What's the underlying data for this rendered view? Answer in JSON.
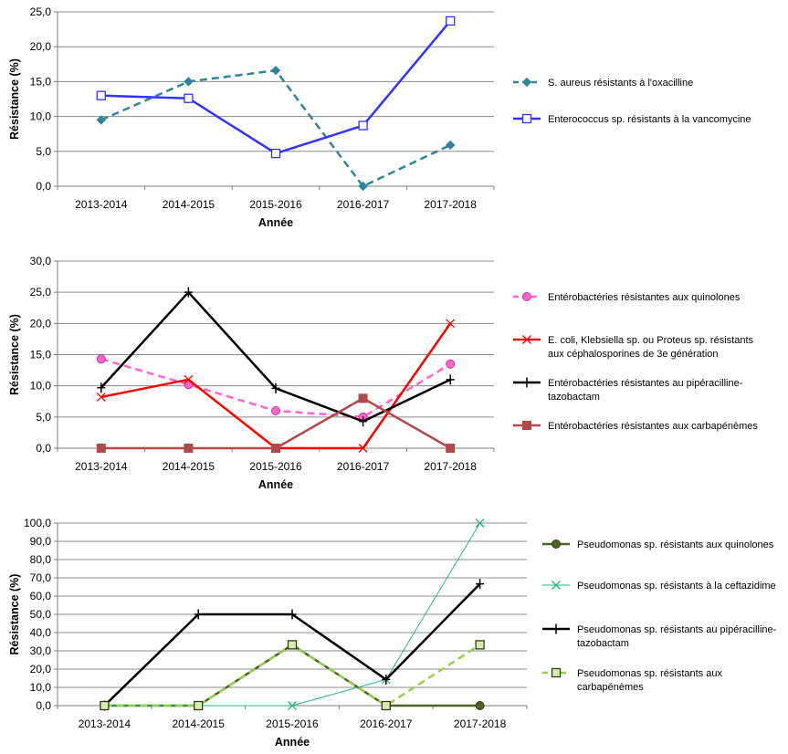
{
  "chart_data": [
    {
      "type": "line",
      "categories": [
        "2013-2014",
        "2014-2015",
        "2015-2016",
        "2016-2017",
        "2017-2018"
      ],
      "xlabel": "Année",
      "ylabel": "Résistance (%)",
      "ylim": [
        0,
        25
      ],
      "ystep": 5,
      "yticks": [
        "0,0",
        "5,0",
        "10,0",
        "15,0",
        "20,0",
        "25,0"
      ],
      "grid": true,
      "legend_position": "right",
      "series": [
        {
          "name": "S. aureus résistants à l'oxacilline",
          "values": [
            9.5,
            15.0,
            16.6,
            0.0,
            5.9
          ],
          "color": "#31849b",
          "dash": "dashed",
          "marker": "diamond",
          "width": 2.5
        },
        {
          "name": "Enterococcus sp. résistants à la vancomycine",
          "values": [
            13.0,
            12.6,
            4.7,
            8.7,
            23.7
          ],
          "color": "#3333ff",
          "dash": "solid",
          "marker": "square-open",
          "width": 2.5
        }
      ]
    },
    {
      "type": "line",
      "categories": [
        "2013-2014",
        "2014-2015",
        "2015-2016",
        "2016-2017",
        "2017-2018"
      ],
      "xlabel": "Année",
      "ylabel": "Résistance (%)",
      "ylim": [
        0,
        30
      ],
      "ystep": 5,
      "yticks": [
        "0,0",
        "5,0",
        "10,0",
        "15,0",
        "20,0",
        "25,0",
        "30,0"
      ],
      "grid": true,
      "legend_position": "right",
      "series": [
        {
          "name": "Entérobactéries résistantes aux quinolones",
          "values": [
            14.3,
            10.2,
            6.0,
            5.0,
            13.5
          ],
          "color": "#ff66cc",
          "dash": "dashed",
          "marker": "circle",
          "width": 2.5
        },
        {
          "name": "E. coli, Klebsiella sp. ou Proteus sp. résistants aux céphalosporines de 3e génération",
          "values": [
            8.2,
            11.0,
            0.0,
            0.0,
            20.0
          ],
          "color": "#ff0000",
          "dash": "solid",
          "marker": "x",
          "width": 2.5
        },
        {
          "name": "Entérobactéries résistantes au pipéracilline-tazobactam",
          "values": [
            9.7,
            25.0,
            9.6,
            4.3,
            11.0
          ],
          "color": "#000000",
          "dash": "solid",
          "marker": "plus",
          "width": 2.5
        },
        {
          "name": "Entérobactéries résistantes aux carbapénèmes",
          "values": [
            0.0,
            0.0,
            0.0,
            8.0,
            0.0
          ],
          "color": "#b04a4a",
          "dash": "solid",
          "marker": "square",
          "width": 2.5
        }
      ]
    },
    {
      "type": "line",
      "categories": [
        "2013-2014",
        "2014-2015",
        "2015-2016",
        "2016-2017",
        "2017-2018"
      ],
      "xlabel": "Année",
      "ylabel": "Résistance (%)",
      "ylim": [
        0,
        100
      ],
      "ystep": 10,
      "yticks": [
        "0,0",
        "10,0",
        "20,0",
        "30,0",
        "40,0",
        "50,0",
        "60,0",
        "70,0",
        "80,0",
        "90,0",
        "100,0"
      ],
      "grid": true,
      "legend_position": "right",
      "series": [
        {
          "name": "Pseudomonas sp. résistants aux quinolones",
          "values": [
            0.0,
            0.0,
            33.3,
            0.0,
            0.0
          ],
          "color": "#4f6228",
          "dash": "solid",
          "marker": "circle",
          "width": 2.5
        },
        {
          "name": "Pseudomonas sp. résistants à la ceftazidime",
          "values": [
            0.0,
            0.0,
            0.0,
            14.3,
            100.0
          ],
          "color": "#2bb38a",
          "dash": "solid",
          "marker": "x",
          "width": 1
        },
        {
          "name": "Pseudomonas sp. résistants au pipéracilline-tazobactam",
          "values": [
            0.0,
            50.0,
            50.0,
            14.3,
            66.7
          ],
          "color": "#000000",
          "dash": "solid",
          "marker": "plus",
          "width": 2.5
        },
        {
          "name": "Pseudomonas sp. résistants aux carbapénèmes",
          "values": [
            0.0,
            0.0,
            33.3,
            0.0,
            33.3
          ],
          "color": "#92d050",
          "dash": "dashed",
          "marker": "square-open-green",
          "width": 2.5
        }
      ]
    }
  ]
}
